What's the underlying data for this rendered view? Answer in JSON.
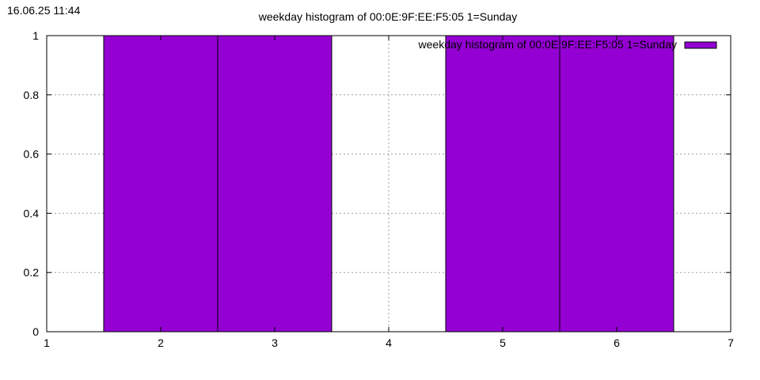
{
  "timestamp": "16.06.25 11:44",
  "chart_data": {
    "type": "bar",
    "title": "weekday histogram of 00:0E:9F:EE:F5:05 1=Sunday",
    "legend": {
      "label": "weekday histogram of 00:0E:9F:EE:F5:05 1=Sunday",
      "placement": "top-right"
    },
    "x": [
      2,
      3,
      5,
      6
    ],
    "values": [
      1,
      1,
      1,
      1
    ],
    "bar_width": 1,
    "xlim": [
      1,
      7
    ],
    "ylim": [
      0,
      1
    ],
    "xticks": [
      1,
      2,
      3,
      4,
      5,
      6,
      7
    ],
    "yticks": [
      0,
      0.2,
      0.4,
      0.6,
      0.8,
      1
    ],
    "ytick_labels": [
      "0",
      "0.2",
      "0.4",
      "0.6",
      "0.8",
      "1"
    ],
    "xlabel": "",
    "ylabel": "",
    "grid": true,
    "bar_color": "#9400d3"
  }
}
